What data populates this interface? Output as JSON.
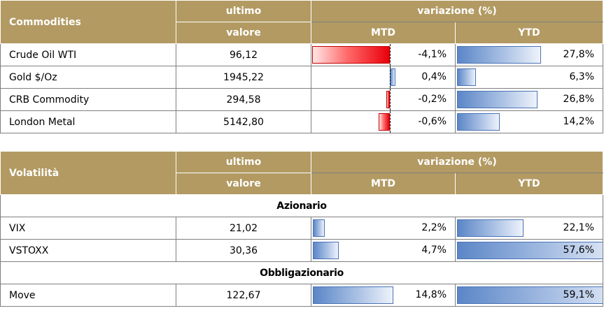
{
  "commodities": {
    "title": "Commodities",
    "col_last_line1": "ultimo",
    "col_last_line2": "valore",
    "col_change": "variazione (%)",
    "col_mtd": "MTD",
    "col_ytd": "YTD",
    "rows": [
      {
        "name": "Crude Oil WTI",
        "value": "96,12",
        "mtd": "-4,1%",
        "mtd_num": -4.1,
        "ytd": "27,8%",
        "ytd_num": 27.8
      },
      {
        "name": "Gold $/Oz",
        "value": "1945,22",
        "mtd": "0,4%",
        "mtd_num": 0.4,
        "ytd": "6,3%",
        "ytd_num": 6.3
      },
      {
        "name": "CRB Commodity",
        "value": "294,58",
        "mtd": "-0,2%",
        "mtd_num": -0.2,
        "ytd": "26,8%",
        "ytd_num": 26.8
      },
      {
        "name": "London Metal",
        "value": "5142,80",
        "mtd": "-0,6%",
        "mtd_num": -0.6,
        "ytd": "14,2%",
        "ytd_num": 14.2
      }
    ]
  },
  "volatility": {
    "title": "Volatilità",
    "col_last_line1": "ultimo",
    "col_last_line2": "valore",
    "col_change": "variazione (%)",
    "col_mtd": "MTD",
    "col_ytd": "YTD",
    "section_equity": "Azionario",
    "section_bond": "Obbligazionario",
    "equity_rows": [
      {
        "name": "VIX",
        "value": "21,02",
        "mtd": "2,2%",
        "mtd_num": 2.2,
        "ytd": "22,1%",
        "ytd_num": 22.1
      },
      {
        "name": "VSTOXX",
        "value": "30,36",
        "mtd": "4,7%",
        "mtd_num": 4.7,
        "ytd": "57,6%",
        "ytd_num": 57.6
      }
    ],
    "bond_rows": [
      {
        "name": "Move",
        "value": "122,67",
        "mtd": "14,8%",
        "mtd_num": 14.8,
        "ytd": "59,1%",
        "ytd_num": 59.1
      }
    ]
  },
  "colors": {
    "header_bg": "#b29a62",
    "positive_bar": "#5b86c7",
    "negative_bar": "#e8000b"
  }
}
